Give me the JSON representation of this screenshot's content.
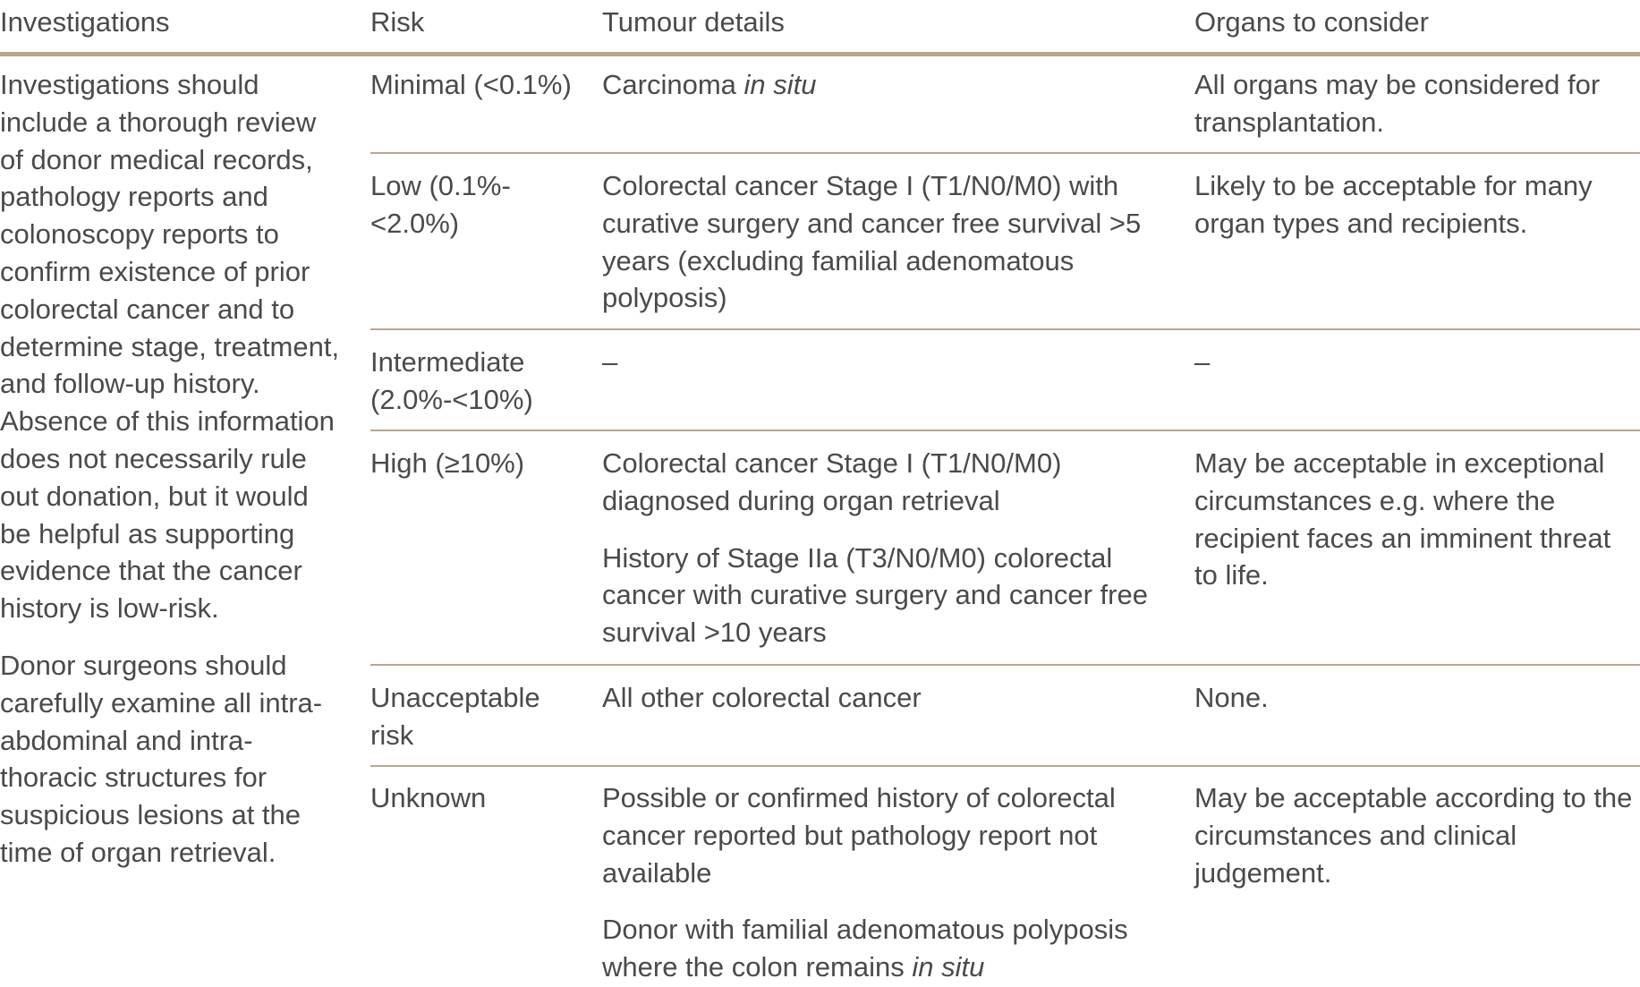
{
  "headers": {
    "investigations": "Investigations",
    "risk": "Risk",
    "tumour_details": "Tumour details",
    "organs": "Organs to consider"
  },
  "investigations": {
    "para1": "Investigations should include a thorough review of donor medical records, pathology reports and colonoscopy reports to confirm existence of prior colorectal cancer and to determine stage, treatment, and follow-up history. Absence of this information does not necessarily rule out donation, but it would be helpful as supporting evidence that the cancer history is low-risk.",
    "para2": "Donor surgeons should carefully examine all intra-abdominal and intra-thoracic structures for suspicious lesions at the time of organ retrieval."
  },
  "rows": [
    {
      "risk": "Minimal (<0.1%)",
      "tumour_main": "Carcinoma ",
      "tumour_italic": "in situ",
      "organs": "All organs may be considered for transplantation."
    },
    {
      "risk": "Low (0.1%-<2.0%)",
      "tumour": "Colorectal cancer Stage I (T1/N0/M0) with curative surgery and cancer free survival >5 years (excluding familial adenomatous polyposis)",
      "organs": "Likely to be acceptable for many organ types and recipients."
    },
    {
      "risk": "Intermediate (2.0%-<10%)",
      "tumour": "–",
      "organs": "–"
    },
    {
      "risk": "High (≥10%)",
      "tumour_1": "Colorectal cancer Stage I (T1/N0/M0) diagnosed during organ retrieval",
      "tumour_2": "History of Stage IIa (T3/N0/M0) colorectal cancer with curative surgery and cancer free survival >10 years",
      "organs": "May be acceptable in exceptional circumstances e.g. where the recipient faces an imminent threat to life."
    },
    {
      "risk": "Unacceptable risk",
      "tumour": "All other colorectal cancer",
      "organs": "None."
    },
    {
      "risk": "Unknown",
      "tumour_1": "Possible or confirmed history of colorectal cancer reported but pathology report not available",
      "tumour_2_main": "Donor with familial adenomatous polyposis where the colon remains ",
      "tumour_2_italic": "in situ",
      "organs": "May be acceptable according to the circumstances and clinical judgement."
    }
  ]
}
